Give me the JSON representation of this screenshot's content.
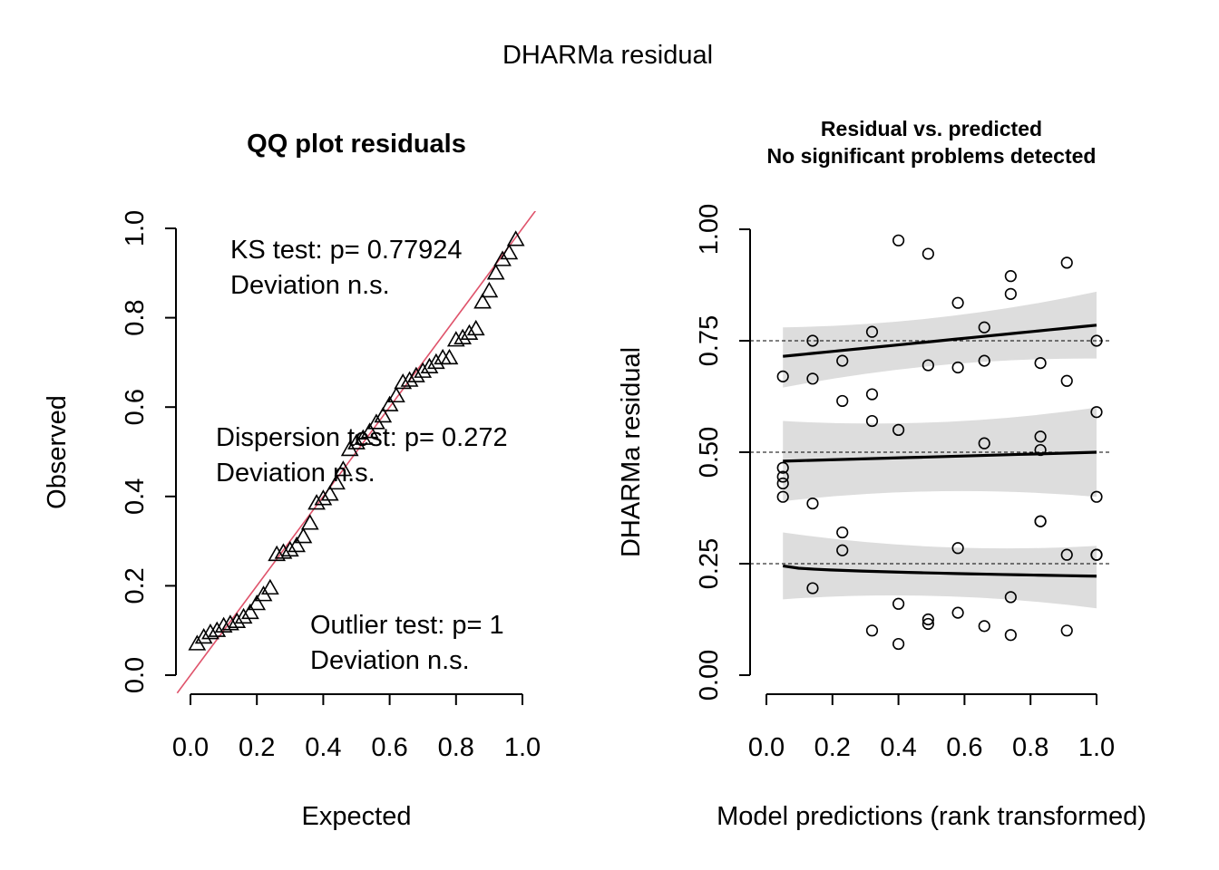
{
  "figure": {
    "title": "DHARMa residual"
  },
  "chart_data": [
    {
      "type": "scatter",
      "title": "QQ plot residuals",
      "xlabel": "Expected",
      "ylabel": "Observed",
      "xlim": [
        0,
        1
      ],
      "ylim": [
        0,
        1
      ],
      "xticks": [
        "0.0",
        "0.2",
        "0.4",
        "0.6",
        "0.8",
        "1.0"
      ],
      "yticks": [
        "0.0",
        "0.2",
        "0.4",
        "0.6",
        "0.8",
        "1.0"
      ],
      "marker": "open-triangle",
      "reference_line": {
        "slope": 1,
        "intercept": 0,
        "color": "#DF536B"
      },
      "annotations": [
        {
          "lines": [
            "KS test: p= 0.77924",
            "Deviation  n.s."
          ]
        },
        {
          "lines": [
            "Dispersion test: p= 0.272",
            "Deviation  n.s."
          ]
        },
        {
          "lines": [
            "Outlier test: p= 1",
            "Deviation  n.s."
          ]
        }
      ],
      "x": [
        0.02,
        0.04,
        0.06,
        0.08,
        0.1,
        0.12,
        0.14,
        0.16,
        0.18,
        0.2,
        0.22,
        0.24,
        0.26,
        0.28,
        0.3,
        0.32,
        0.34,
        0.36,
        0.38,
        0.4,
        0.42,
        0.44,
        0.46,
        0.48,
        0.5,
        0.52,
        0.54,
        0.56,
        0.58,
        0.6,
        0.62,
        0.64,
        0.66,
        0.68,
        0.7,
        0.72,
        0.74,
        0.76,
        0.78,
        0.8,
        0.82,
        0.84,
        0.86,
        0.88,
        0.9,
        0.92,
        0.94,
        0.96,
        0.98
      ],
      "y": [
        0.07,
        0.085,
        0.095,
        0.1,
        0.11,
        0.115,
        0.12,
        0.13,
        0.14,
        0.16,
        0.18,
        0.195,
        0.27,
        0.275,
        0.28,
        0.29,
        0.31,
        0.34,
        0.385,
        0.395,
        0.405,
        0.43,
        0.46,
        0.505,
        0.52,
        0.53,
        0.545,
        0.565,
        0.58,
        0.605,
        0.625,
        0.655,
        0.66,
        0.67,
        0.68,
        0.69,
        0.7,
        0.71,
        0.71,
        0.75,
        0.755,
        0.765,
        0.775,
        0.835,
        0.86,
        0.9,
        0.93,
        0.945,
        0.975
      ]
    },
    {
      "type": "scatter",
      "title": "Residual vs. predicted",
      "subtitle": "No significant problems detected",
      "xlabel": "Model predictions (rank transformed)",
      "ylabel": "DHARMa residual",
      "xlim": [
        0,
        1
      ],
      "ylim": [
        0,
        1
      ],
      "xticks": [
        "0.0",
        "0.2",
        "0.4",
        "0.6",
        "0.8",
        "1.0"
      ],
      "yticks": [
        "0.00",
        "0.25",
        "0.50",
        "0.75",
        "1.00"
      ],
      "reference_lines_y": [
        0.25,
        0.5,
        0.75
      ],
      "marker": "open-circle",
      "x": [
        0.05,
        0.05,
        0.05,
        0.05,
        0.05,
        0.14,
        0.14,
        0.14,
        0.14,
        0.23,
        0.23,
        0.23,
        0.23,
        0.32,
        0.32,
        0.32,
        0.32,
        0.4,
        0.4,
        0.4,
        0.4,
        0.49,
        0.49,
        0.49,
        0.49,
        0.58,
        0.58,
        0.58,
        0.58,
        0.66,
        0.66,
        0.66,
        0.66,
        0.74,
        0.74,
        0.74,
        0.74,
        0.83,
        0.83,
        0.83,
        0.83,
        0.83,
        0.91,
        0.91,
        0.91,
        0.91,
        1.0,
        1.0,
        1.0,
        1.0,
        1.0
      ],
      "y": [
        0.67,
        0.465,
        0.43,
        0.4,
        0.445,
        0.75,
        0.665,
        0.385,
        0.195,
        0.705,
        0.615,
        0.32,
        0.28,
        0.77,
        0.63,
        0.57,
        0.1,
        0.975,
        0.55,
        0.16,
        0.07,
        0.945,
        0.695,
        0.125,
        0.115,
        0.835,
        0.69,
        0.285,
        0.14,
        0.78,
        0.705,
        0.52,
        0.11,
        0.895,
        0.855,
        0.175,
        0.09,
        0.7,
        0.535,
        0.505,
        0.345,
        0.345,
        0.925,
        0.66,
        0.27,
        0.1,
        0.75,
        0.59,
        0.4,
        0.27,
        0.27
      ],
      "quantile_fits": [
        {
          "quantile": 0.25,
          "y_at_xmin": 0.245,
          "y_at_xmax": 0.222,
          "band_low": [
            0.17,
            0.15
          ],
          "band_high": [
            0.32,
            0.29
          ]
        },
        {
          "quantile": 0.5,
          "y_at_xmin": 0.48,
          "y_at_xmax": 0.5,
          "band_low": [
            0.39,
            0.4
          ],
          "band_high": [
            0.57,
            0.6
          ]
        },
        {
          "quantile": 0.75,
          "y_at_xmin": 0.715,
          "y_at_xmax": 0.785,
          "band_low": [
            0.645,
            0.71
          ],
          "band_high": [
            0.78,
            0.86
          ]
        }
      ],
      "band_color": "#DDDDDD"
    }
  ]
}
